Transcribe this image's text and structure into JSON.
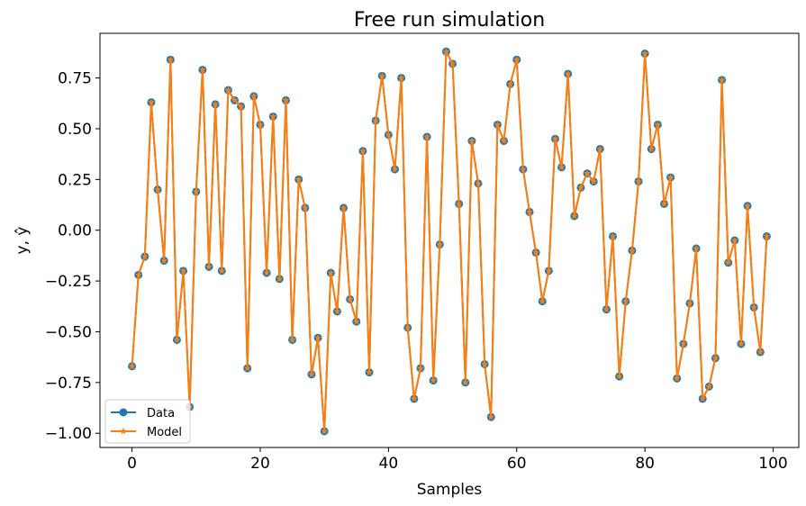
{
  "chart_data": {
    "type": "line",
    "title": "Free run simulation",
    "xlabel": "Samples",
    "ylabel": "y, ŷ",
    "xlim": [
      -5,
      104
    ],
    "ylim": [
      -1.07,
      0.97
    ],
    "xticks": [
      0,
      20,
      40,
      60,
      80,
      100
    ],
    "xtick_labels": [
      "0",
      "20",
      "40",
      "60",
      "80",
      "100"
    ],
    "yticks": [
      -1.0,
      -0.75,
      -0.5,
      -0.25,
      0.0,
      0.25,
      0.5,
      0.75
    ],
    "ytick_labels": [
      "−1.00",
      "−0.75",
      "−0.50",
      "−0.25",
      "0.00",
      "0.25",
      "0.50",
      "0.75"
    ],
    "grid": false,
    "legend_position": "bottom-left",
    "x": [
      0,
      1,
      2,
      3,
      4,
      5,
      6,
      7,
      8,
      9,
      10,
      11,
      12,
      13,
      14,
      15,
      16,
      17,
      18,
      19,
      20,
      21,
      22,
      23,
      24,
      25,
      26,
      27,
      28,
      29,
      30,
      31,
      32,
      33,
      34,
      35,
      36,
      37,
      38,
      39,
      40,
      41,
      42,
      43,
      44,
      45,
      46,
      47,
      48,
      49,
      50,
      51,
      52,
      53,
      54,
      55,
      56,
      57,
      58,
      59,
      60,
      61,
      62,
      63,
      64,
      65,
      66,
      67,
      68,
      69,
      70,
      71,
      72,
      73,
      74,
      75,
      76,
      77,
      78,
      79,
      80,
      81,
      82,
      83,
      84,
      85,
      86,
      87,
      88,
      89,
      90,
      91,
      92,
      93,
      94,
      95,
      96,
      97,
      98,
      99
    ],
    "series": [
      {
        "name": "Data",
        "color": "#1f77b4",
        "marker": "circle",
        "values": [
          -0.67,
          -0.22,
          -0.13,
          0.63,
          0.2,
          -0.15,
          0.84,
          -0.54,
          -0.2,
          -0.87,
          0.19,
          0.79,
          -0.18,
          0.62,
          -0.2,
          0.69,
          0.64,
          0.61,
          -0.68,
          0.66,
          0.52,
          -0.21,
          0.56,
          -0.24,
          0.64,
          -0.54,
          0.25,
          0.11,
          -0.71,
          -0.53,
          -0.99,
          -0.21,
          -0.4,
          0.11,
          -0.34,
          -0.45,
          0.39,
          -0.7,
          0.54,
          0.76,
          0.47,
          0.3,
          0.75,
          -0.48,
          -0.83,
          -0.68,
          0.46,
          -0.74,
          -0.07,
          0.88,
          0.82,
          0.13,
          -0.75,
          0.44,
          0.23,
          -0.66,
          -0.92,
          0.52,
          0.44,
          0.72,
          0.84,
          0.3,
          0.09,
          -0.11,
          -0.35,
          -0.2,
          0.45,
          0.31,
          0.77,
          0.07,
          0.21,
          0.28,
          0.24,
          0.4,
          -0.39,
          -0.03,
          -0.72,
          -0.35,
          -0.1,
          0.24,
          0.87,
          0.4,
          0.52,
          0.13,
          0.26,
          -0.73,
          -0.56,
          -0.36,
          -0.09,
          -0.83,
          -0.77,
          -0.63,
          0.74,
          -0.16,
          -0.05,
          -0.56,
          0.12,
          -0.38,
          -0.6,
          -0.03
        ]
      },
      {
        "name": "Model",
        "color": "#ff7f0e",
        "marker": "star",
        "values": [
          -0.67,
          -0.22,
          -0.13,
          0.63,
          0.2,
          -0.15,
          0.84,
          -0.54,
          -0.2,
          -0.87,
          0.19,
          0.79,
          -0.18,
          0.62,
          -0.2,
          0.69,
          0.64,
          0.61,
          -0.68,
          0.66,
          0.52,
          -0.21,
          0.56,
          -0.24,
          0.64,
          -0.54,
          0.25,
          0.11,
          -0.71,
          -0.53,
          -0.99,
          -0.21,
          -0.4,
          0.11,
          -0.34,
          -0.45,
          0.39,
          -0.7,
          0.54,
          0.76,
          0.47,
          0.3,
          0.75,
          -0.48,
          -0.83,
          -0.68,
          0.46,
          -0.74,
          -0.07,
          0.88,
          0.82,
          0.13,
          -0.75,
          0.44,
          0.23,
          -0.66,
          -0.92,
          0.52,
          0.44,
          0.72,
          0.84,
          0.3,
          0.09,
          -0.11,
          -0.35,
          -0.2,
          0.45,
          0.31,
          0.77,
          0.07,
          0.21,
          0.28,
          0.24,
          0.4,
          -0.39,
          -0.03,
          -0.72,
          -0.35,
          -0.1,
          0.24,
          0.87,
          0.4,
          0.52,
          0.13,
          0.26,
          -0.73,
          -0.56,
          -0.36,
          -0.09,
          -0.83,
          -0.77,
          -0.63,
          0.74,
          -0.16,
          -0.05,
          -0.56,
          0.12,
          -0.38,
          -0.6,
          -0.03
        ]
      }
    ]
  }
}
